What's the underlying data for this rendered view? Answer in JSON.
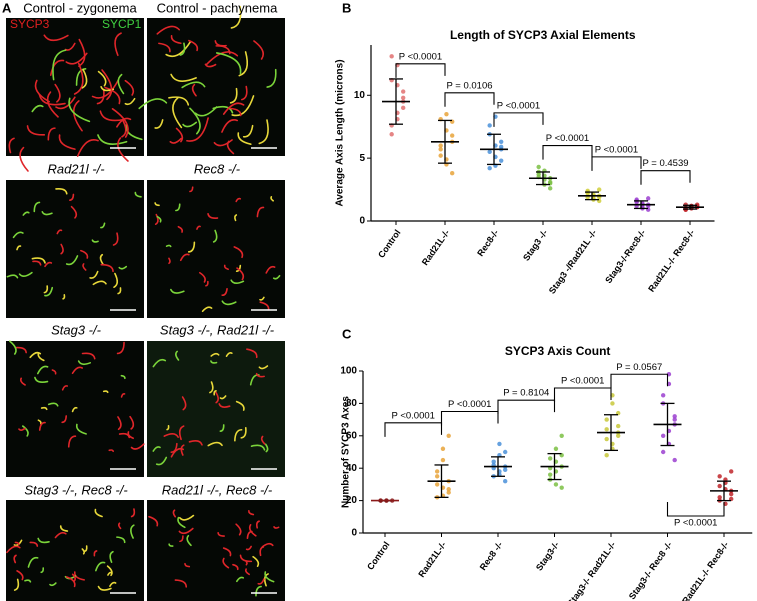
{
  "figure": {
    "panel_letters": [
      "A",
      "B",
      "C"
    ],
    "channel_labels": [
      "SYCP3",
      "SYCP1"
    ],
    "panels": [
      {
        "label": "Control - zygonema"
      },
      {
        "label": "Control - pachynema"
      },
      {
        "label": "Rad21l -/-"
      },
      {
        "label": "Rec8 -/-"
      },
      {
        "label": "Stag3 -/-"
      },
      {
        "label": "Stag3 -/-, Rad21l -/-"
      },
      {
        "label": "Stag3 -/-, Rec8 -/-"
      },
      {
        "label": "Rad21l -/-, Rec8 -/-"
      }
    ]
  },
  "chart_data": [
    {
      "type": "dotplot",
      "title": "Length of SYCP3 Axial Elements",
      "y_label": "Average Axis Length (microns)",
      "categories": [
        "Control",
        "Rad21L-/-",
        "Rec8-/-",
        "Stag3 -/-",
        "Stag3 -/Rad21L -/-",
        "Stag3-/-Rec8-/-",
        "Rad21L-/- Rec8-/-"
      ],
      "colors": [
        "#e07070",
        "#e8a33a",
        "#4a90d9",
        "#7bc043",
        "#d0cf3a",
        "#9b3fd0",
        "#c0262a"
      ],
      "values": [
        9.5,
        6.3,
        5.7,
        3.4,
        2.0,
        1.3,
        1.1
      ],
      "errors": [
        1.8,
        1.7,
        1.2,
        0.5,
        0.3,
        0.3,
        0.15
      ],
      "points": [
        [
          9.5,
          11.2,
          8.1,
          12.4,
          7.6,
          10.3,
          9.0,
          13.1,
          8.6,
          10.8,
          6.9,
          9.8
        ],
        [
          6.3,
          8.1,
          4.5,
          7.2,
          5.2,
          3.8,
          7.9,
          6.0,
          4.9,
          8.5,
          5.7,
          6.8
        ],
        [
          5.7,
          6.9,
          4.4,
          5.1,
          7.6,
          6.3,
          4.8,
          5.5,
          8.3,
          6.0,
          4.2,
          5.9
        ],
        [
          3.4,
          3.9,
          2.9,
          3.6,
          4.3,
          3.1,
          2.6,
          3.7,
          4.0,
          3.3,
          3.5,
          3.0
        ],
        [
          2.0,
          2.3,
          1.7,
          2.1,
          1.9,
          2.5,
          1.6,
          2.2,
          1.8,
          2.0,
          2.4,
          1.9
        ],
        [
          1.3,
          1.6,
          1.0,
          1.4,
          1.2,
          1.8,
          0.9,
          1.5,
          1.1,
          1.3,
          1.7,
          1.2
        ],
        [
          1.1,
          1.3,
          1.0,
          1.2,
          0.9,
          1.1,
          1.3,
          1.0,
          1.2,
          1.1,
          0.9,
          1.2
        ]
      ],
      "annotations": [
        {
          "from": 0,
          "to": 1,
          "y": 12.5,
          "label": "P <0.0001"
        },
        {
          "from": 1,
          "to": 2,
          "y": 10.2,
          "label": "P = 0.0106"
        },
        {
          "from": 2,
          "to": 3,
          "y": 8.6,
          "label": "P <0.0001"
        },
        {
          "from": 3,
          "to": 4,
          "y": 6.0,
          "label": "P <0.0001"
        },
        {
          "from": 4,
          "to": 5,
          "y": 5.1,
          "label": "P <0.0001"
        },
        {
          "from": 5,
          "to": 6,
          "y": 4.0,
          "label": "P = 0.4539"
        }
      ],
      "ylim": [
        0,
        14
      ],
      "yticks": [
        0,
        5,
        10
      ]
    },
    {
      "type": "dotplot",
      "title": "SYCP3 Axis Count",
      "y_label": "Number of SYCP3 Axes",
      "categories": [
        "Control",
        "Rad21L-/-",
        "Rec8 -/-",
        "Stag3-/-",
        "Stag3-/- Rad21L-/-",
        "Stag3-/- Rec8 -/-",
        "Rad21L-/- Rec8-/-"
      ],
      "colors": [
        "#8b1a1a",
        "#e8a33a",
        "#4a90d9",
        "#7bc043",
        "#c8c83a",
        "#9b3fd0",
        "#c0262a"
      ],
      "values": [
        20,
        32,
        41,
        41,
        62,
        67,
        26
      ],
      "errors": [
        0,
        10,
        6,
        8,
        11,
        13,
        6
      ],
      "points": [
        [
          20,
          20,
          20,
          20,
          20
        ],
        [
          32,
          22,
          45,
          28,
          38,
          25,
          60,
          30,
          23,
          52,
          35,
          27
        ],
        [
          41,
          35,
          48,
          38,
          44,
          32,
          50,
          40,
          36,
          55,
          42,
          39
        ],
        [
          41,
          33,
          52,
          38,
          46,
          28,
          60,
          36,
          44,
          30,
          40,
          48
        ],
        [
          62,
          70,
          55,
          80,
          48,
          66,
          74,
          58,
          85,
          52,
          64,
          60
        ],
        [
          67,
          80,
          55,
          92,
          60,
          72,
          45,
          85,
          63,
          98,
          50,
          70
        ],
        [
          26,
          22,
          33,
          18,
          29,
          38,
          24,
          20,
          31,
          27,
          35,
          21
        ]
      ],
      "annotations": [
        {
          "from": 0,
          "to": 1,
          "y": 68,
          "label": "P <0.0001"
        },
        {
          "from": 1,
          "to": 2,
          "y": 75,
          "label": "P <0.0001"
        },
        {
          "from": 2,
          "to": 3,
          "y": 82,
          "label": "P = 0.8104"
        },
        {
          "from": 3,
          "to": 4,
          "y": 89.5,
          "label": "P <0.0001"
        },
        {
          "from": 4,
          "to": 5,
          "y": 98,
          "label": "P = 0.0567"
        },
        {
          "from": 5,
          "to": 6,
          "y": 10.5,
          "label": "P <0.0001",
          "below": true
        }
      ],
      "ylim": [
        0,
        100
      ],
      "yticks": [
        0,
        20,
        40,
        60,
        80,
        100
      ]
    }
  ]
}
